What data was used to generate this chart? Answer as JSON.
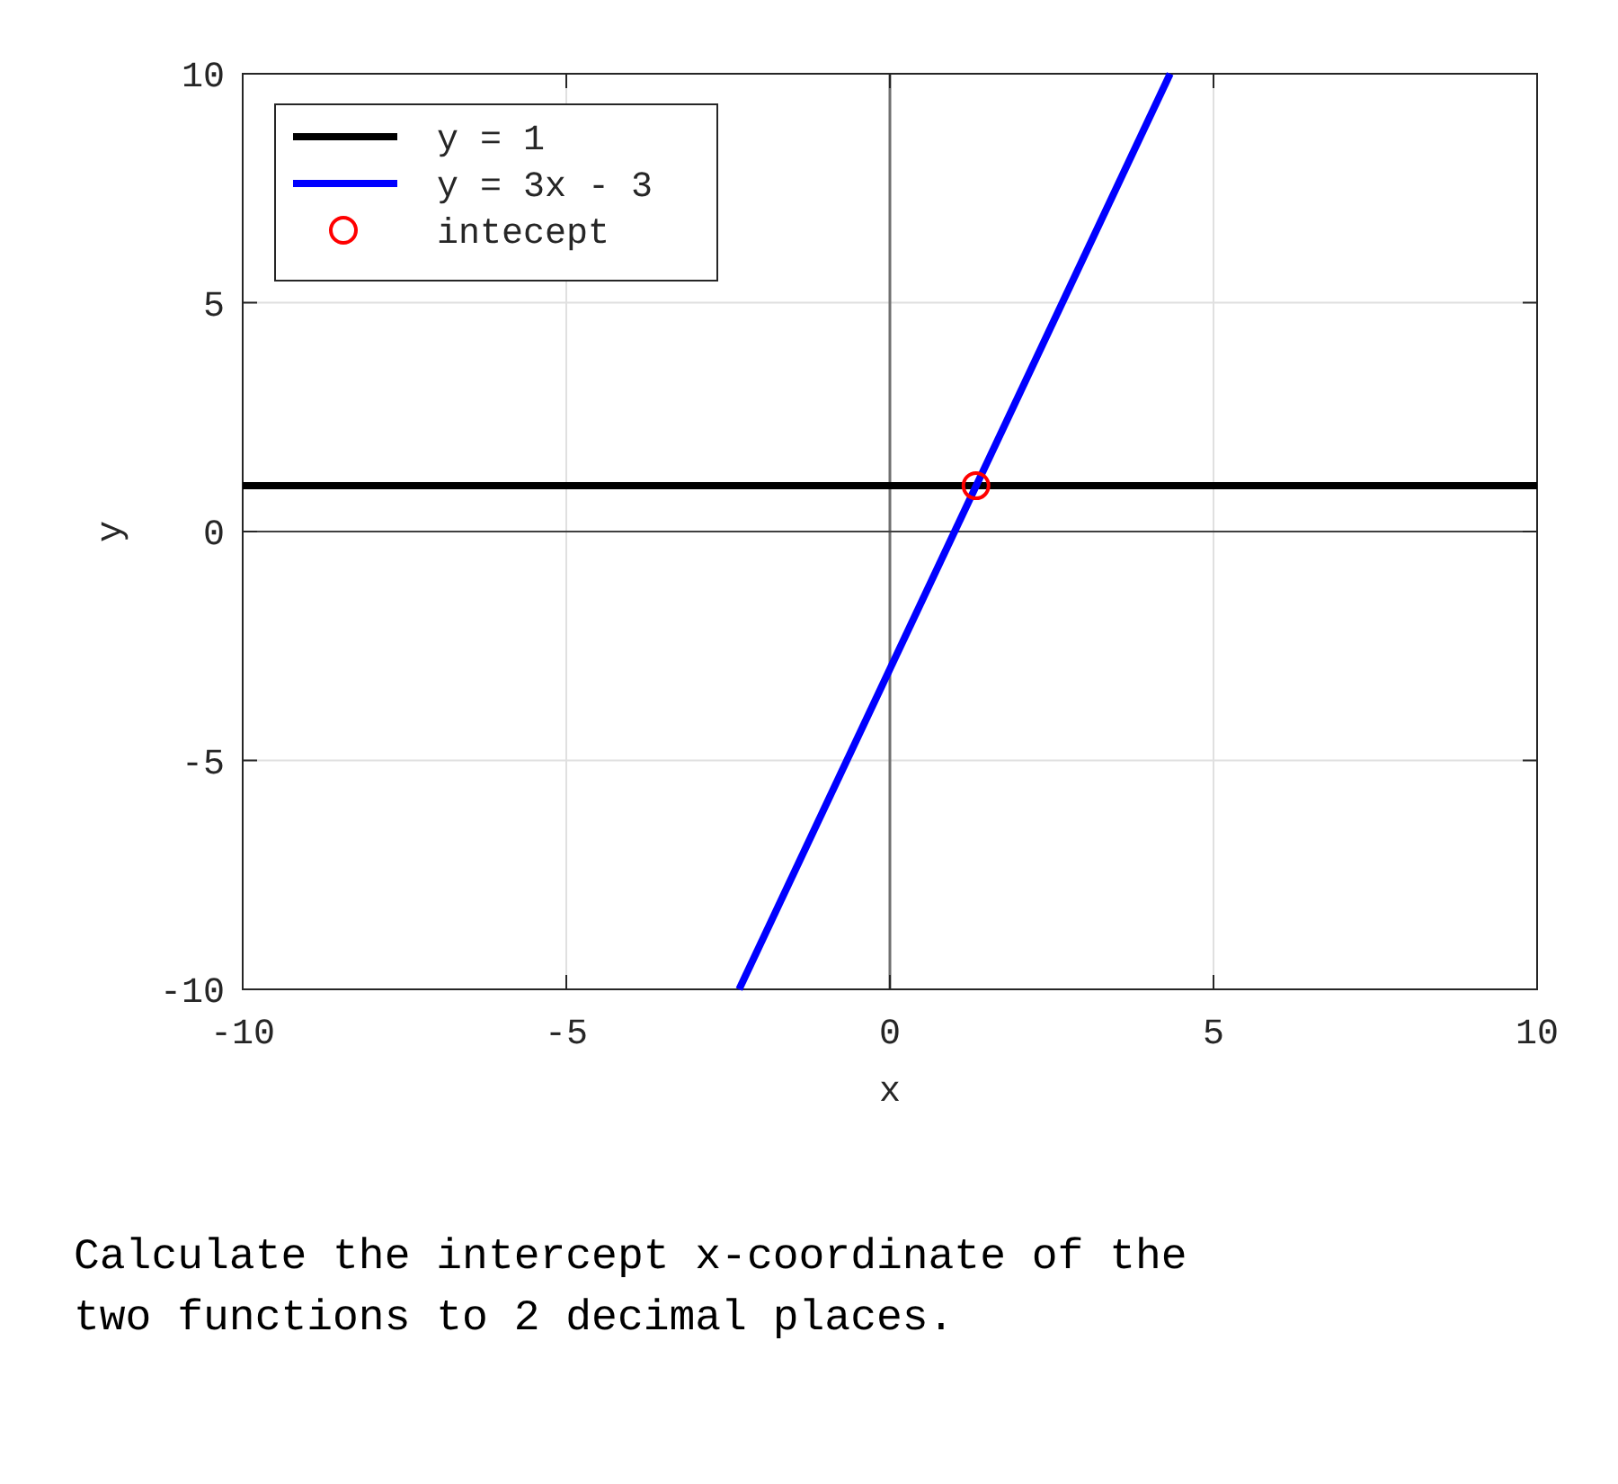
{
  "chart_data": {
    "type": "line",
    "xlabel": "x",
    "ylabel": "y",
    "xlim": [
      -10,
      10
    ],
    "ylim": [
      -10,
      10
    ],
    "xticks": [
      -10,
      -5,
      0,
      5,
      10
    ],
    "yticks": [
      -10,
      -5,
      0,
      5,
      10
    ],
    "grid": true,
    "legend": "top left",
    "line_style": "solid",
    "ref_lines": [
      {
        "axis": "x",
        "value": 0,
        "color": "#707070"
      },
      {
        "axis": "y",
        "value": 0,
        "color": "#404040"
      }
    ],
    "series": [
      {
        "name": "y = 1",
        "color": "#000000",
        "x": [
          -10,
          10
        ],
        "values": [
          1,
          1
        ]
      },
      {
        "name": "y = 3x - 3",
        "color": "#0000ff",
        "x": [
          -2.33,
          4.33
        ],
        "values": [
          -10,
          10
        ]
      },
      {
        "name": "intecept",
        "type": "scatter",
        "marker": "circle",
        "color": "#ff0000",
        "x": [
          1.33
        ],
        "values": [
          1
        ]
      }
    ],
    "annotations": [
      "Calculate the intercept x-coordinate of the two functions to 2 decimal places."
    ]
  }
}
